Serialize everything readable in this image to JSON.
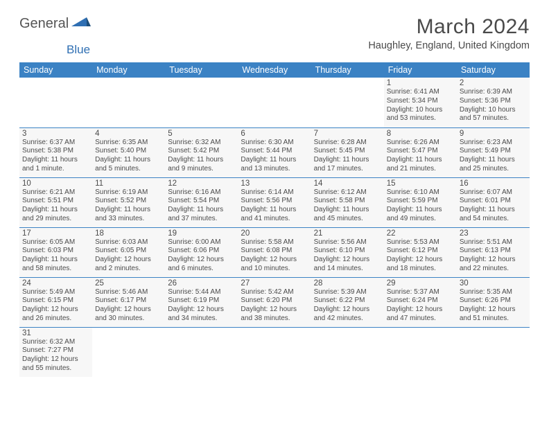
{
  "brand": {
    "part1": "General",
    "part2": "Blue"
  },
  "title": "March 2024",
  "location": "Haughley, England, United Kingdom",
  "dow": [
    "Sunday",
    "Monday",
    "Tuesday",
    "Wednesday",
    "Thursday",
    "Friday",
    "Saturday"
  ],
  "colors": {
    "header_bg": "#3b82c4",
    "cell_bg": "#f7f7f7",
    "border": "#3b82c4",
    "text": "#4a4a4a"
  },
  "days": {
    "1": {
      "sunrise": "6:41 AM",
      "sunset": "5:34 PM",
      "daylight": "10 hours and 53 minutes."
    },
    "2": {
      "sunrise": "6:39 AM",
      "sunset": "5:36 PM",
      "daylight": "10 hours and 57 minutes."
    },
    "3": {
      "sunrise": "6:37 AM",
      "sunset": "5:38 PM",
      "daylight": "11 hours and 1 minute."
    },
    "4": {
      "sunrise": "6:35 AM",
      "sunset": "5:40 PM",
      "daylight": "11 hours and 5 minutes."
    },
    "5": {
      "sunrise": "6:32 AM",
      "sunset": "5:42 PM",
      "daylight": "11 hours and 9 minutes."
    },
    "6": {
      "sunrise": "6:30 AM",
      "sunset": "5:44 PM",
      "daylight": "11 hours and 13 minutes."
    },
    "7": {
      "sunrise": "6:28 AM",
      "sunset": "5:45 PM",
      "daylight": "11 hours and 17 minutes."
    },
    "8": {
      "sunrise": "6:26 AM",
      "sunset": "5:47 PM",
      "daylight": "11 hours and 21 minutes."
    },
    "9": {
      "sunrise": "6:23 AM",
      "sunset": "5:49 PM",
      "daylight": "11 hours and 25 minutes."
    },
    "10": {
      "sunrise": "6:21 AM",
      "sunset": "5:51 PM",
      "daylight": "11 hours and 29 minutes."
    },
    "11": {
      "sunrise": "6:19 AM",
      "sunset": "5:52 PM",
      "daylight": "11 hours and 33 minutes."
    },
    "12": {
      "sunrise": "6:16 AM",
      "sunset": "5:54 PM",
      "daylight": "11 hours and 37 minutes."
    },
    "13": {
      "sunrise": "6:14 AM",
      "sunset": "5:56 PM",
      "daylight": "11 hours and 41 minutes."
    },
    "14": {
      "sunrise": "6:12 AM",
      "sunset": "5:58 PM",
      "daylight": "11 hours and 45 minutes."
    },
    "15": {
      "sunrise": "6:10 AM",
      "sunset": "5:59 PM",
      "daylight": "11 hours and 49 minutes."
    },
    "16": {
      "sunrise": "6:07 AM",
      "sunset": "6:01 PM",
      "daylight": "11 hours and 54 minutes."
    },
    "17": {
      "sunrise": "6:05 AM",
      "sunset": "6:03 PM",
      "daylight": "11 hours and 58 minutes."
    },
    "18": {
      "sunrise": "6:03 AM",
      "sunset": "6:05 PM",
      "daylight": "12 hours and 2 minutes."
    },
    "19": {
      "sunrise": "6:00 AM",
      "sunset": "6:06 PM",
      "daylight": "12 hours and 6 minutes."
    },
    "20": {
      "sunrise": "5:58 AM",
      "sunset": "6:08 PM",
      "daylight": "12 hours and 10 minutes."
    },
    "21": {
      "sunrise": "5:56 AM",
      "sunset": "6:10 PM",
      "daylight": "12 hours and 14 minutes."
    },
    "22": {
      "sunrise": "5:53 AM",
      "sunset": "6:12 PM",
      "daylight": "12 hours and 18 minutes."
    },
    "23": {
      "sunrise": "5:51 AM",
      "sunset": "6:13 PM",
      "daylight": "12 hours and 22 minutes."
    },
    "24": {
      "sunrise": "5:49 AM",
      "sunset": "6:15 PM",
      "daylight": "12 hours and 26 minutes."
    },
    "25": {
      "sunrise": "5:46 AM",
      "sunset": "6:17 PM",
      "daylight": "12 hours and 30 minutes."
    },
    "26": {
      "sunrise": "5:44 AM",
      "sunset": "6:19 PM",
      "daylight": "12 hours and 34 minutes."
    },
    "27": {
      "sunrise": "5:42 AM",
      "sunset": "6:20 PM",
      "daylight": "12 hours and 38 minutes."
    },
    "28": {
      "sunrise": "5:39 AM",
      "sunset": "6:22 PM",
      "daylight": "12 hours and 42 minutes."
    },
    "29": {
      "sunrise": "5:37 AM",
      "sunset": "6:24 PM",
      "daylight": "12 hours and 47 minutes."
    },
    "30": {
      "sunrise": "5:35 AM",
      "sunset": "6:26 PM",
      "daylight": "12 hours and 51 minutes."
    },
    "31": {
      "sunrise": "6:32 AM",
      "sunset": "7:27 PM",
      "daylight": "12 hours and 55 minutes."
    }
  },
  "labels": {
    "sunrise": "Sunrise: ",
    "sunset": "Sunset: ",
    "daylight": "Daylight: "
  },
  "layout": {
    "leading_blanks": 5,
    "total_days": 31
  }
}
